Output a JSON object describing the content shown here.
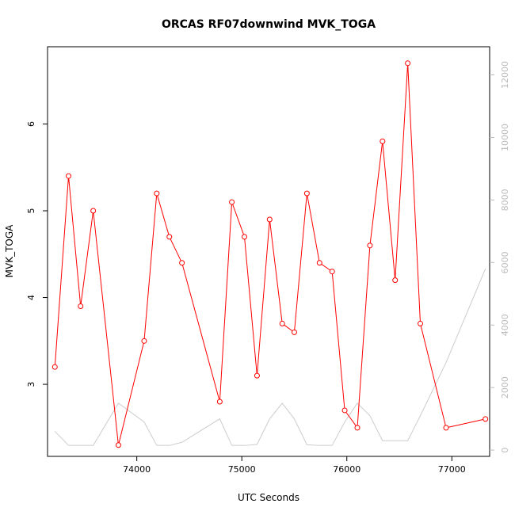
{
  "chart_data": {
    "type": "line",
    "title": "ORCAS RF07downwind MVK_TOGA",
    "xlabel": "UTC Seconds",
    "ylabel": "MVK_TOGA",
    "xlim": [
      73150,
      77360
    ],
    "ylim": [
      2.17,
      6.89
    ],
    "y2lim": [
      -200,
      12900
    ],
    "x_ticks": [
      74000,
      75000,
      76000,
      77000
    ],
    "y_ticks": [
      3,
      4,
      5,
      6
    ],
    "y2_ticks": [
      0,
      2000,
      4000,
      6000,
      8000,
      10000,
      12000
    ],
    "x_tick_labels": [
      "74000",
      "75000",
      "76000",
      "77000"
    ],
    "y_tick_labels": [
      "3",
      "4",
      "5",
      "6"
    ],
    "y2_tick_labels": [
      "0",
      "2000",
      "4000",
      "6000",
      "8000",
      "10000",
      "12000"
    ],
    "grid": false,
    "series": [
      {
        "axis": "left",
        "color": "#ff0000",
        "markers": true,
        "x": [
          73220,
          73350,
          73465,
          73585,
          73825,
          74070,
          74190,
          74310,
          74430,
          74790,
          74905,
          75025,
          75145,
          75265,
          75385,
          75500,
          75620,
          75740,
          75860,
          75980,
          76100,
          76220,
          76340,
          76460,
          76580,
          76700,
          76945,
          77320
        ],
        "values": [
          3.2,
          5.4,
          3.9,
          5.0,
          2.3,
          3.5,
          5.2,
          4.7,
          4.4,
          2.8,
          5.1,
          4.7,
          3.1,
          4.9,
          3.7,
          3.6,
          5.2,
          4.4,
          4.3,
          2.7,
          2.5,
          4.6,
          5.8,
          4.2,
          6.7,
          3.7,
          2.5,
          2.6
        ]
      },
      {
        "axis": "right",
        "color": "#cccccc",
        "markers": false,
        "x": [
          73220,
          73350,
          73465,
          73585,
          73825,
          74070,
          74190,
          74310,
          74430,
          74790,
          74905,
          75025,
          75145,
          75265,
          75385,
          75500,
          75620,
          75740,
          75860,
          75980,
          76100,
          76220,
          76340,
          76460,
          76580,
          76700,
          76945,
          77320
        ],
        "values": [
          600,
          150,
          150,
          150,
          1500,
          900,
          150,
          150,
          250,
          1000,
          150,
          150,
          180,
          1000,
          1500,
          1000,
          170,
          150,
          150,
          900,
          1500,
          1100,
          300,
          300,
          300,
          1100,
          2800,
          5800
        ]
      }
    ]
  }
}
